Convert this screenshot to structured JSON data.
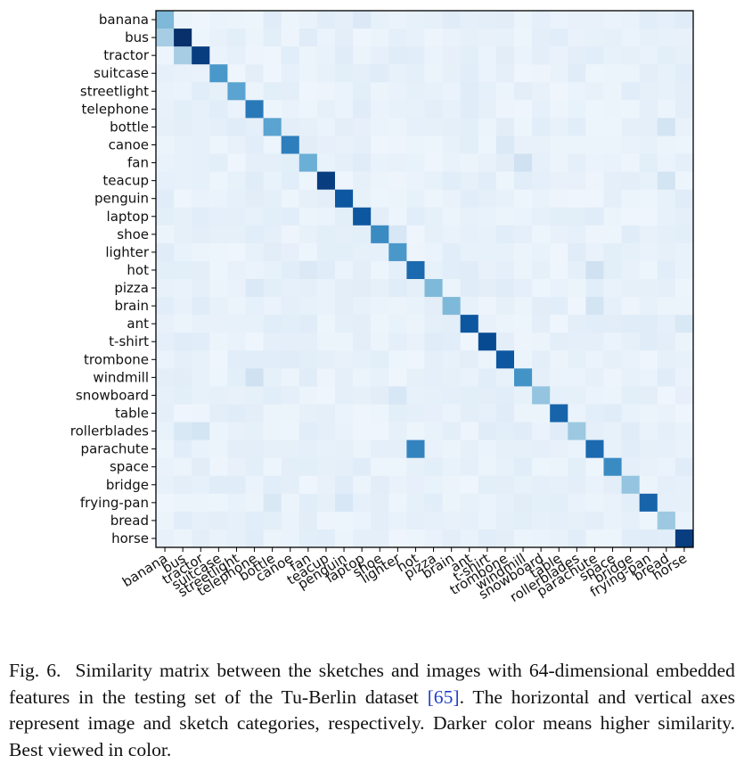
{
  "chart_data": {
    "type": "heatmap",
    "categories": [
      "banana",
      "bus",
      "tractor",
      "suitcase",
      "streetlight",
      "telephone",
      "bottle",
      "canoe",
      "fan",
      "teacup",
      "penguin",
      "laptop",
      "shoe",
      "lighter",
      "hot",
      "pizza",
      "brain",
      "ant",
      "t-shirt",
      "trombone",
      "windmill",
      "snowboard",
      "table",
      "rollerblades",
      "parachute",
      "space",
      "bridge",
      "frying-pan",
      "bread",
      "horse"
    ],
    "diagonal": [
      0.45,
      1.0,
      0.95,
      0.6,
      0.55,
      0.72,
      0.55,
      0.7,
      0.5,
      0.95,
      0.85,
      0.85,
      0.65,
      0.6,
      0.78,
      0.45,
      0.45,
      0.85,
      0.9,
      0.85,
      0.62,
      0.4,
      0.8,
      0.38,
      0.78,
      0.65,
      0.4,
      0.8,
      0.38,
      0.95
    ],
    "off_diagonal": [
      {
        "row": "bus",
        "col": "banana",
        "value": 0.35
      },
      {
        "row": "tractor",
        "col": "bus",
        "value": 0.35
      },
      {
        "row": "parachute",
        "col": "hot",
        "value": 0.68
      },
      {
        "row": "hot",
        "col": "parachute",
        "value": 0.2
      },
      {
        "row": "brain",
        "col": "parachute",
        "value": 0.18
      },
      {
        "row": "fan",
        "col": "windmill",
        "value": 0.2
      },
      {
        "row": "teacup",
        "col": "bread",
        "value": 0.18
      },
      {
        "row": "windmill",
        "col": "telephone",
        "value": 0.2
      },
      {
        "row": "shoe",
        "col": "lighter",
        "value": 0.16
      },
      {
        "row": "bottle",
        "col": "bread",
        "value": 0.18
      },
      {
        "row": "frying-pan",
        "col": "penguin",
        "value": 0.16
      },
      {
        "row": "frying-pan",
        "col": "bottle",
        "value": 0.15
      },
      {
        "row": "rollerblades",
        "col": "tractor",
        "value": 0.18
      },
      {
        "row": "rollerblades",
        "col": "bus",
        "value": 0.15
      },
      {
        "row": "snowboard",
        "col": "lighter",
        "value": 0.16
      },
      {
        "row": "pizza",
        "col": "telephone",
        "value": 0.14
      },
      {
        "row": "banana",
        "col": "laptop",
        "value": 0.14
      },
      {
        "row": "canoe",
        "col": "trombone",
        "value": 0.14
      },
      {
        "row": "hot",
        "col": "fan",
        "value": 0.14
      },
      {
        "row": "ant",
        "col": "horse",
        "value": 0.15
      }
    ],
    "baseline": 0.08,
    "colormap": {
      "low": "#f7fbff",
      "high": "#08306b"
    },
    "xlabel": "",
    "ylabel": ""
  },
  "caption": {
    "prefix": "Fig. 6.",
    "text": "Similarity matrix between the sketches and images with 64-dimensional embedded features in the testing set of the Tu-Berlin dataset",
    "ref": "[65]",
    "suffix": ". The horizontal and vertical axes represent image and sketch categories, respectively. Darker color means higher similarity. Best viewed in color."
  }
}
